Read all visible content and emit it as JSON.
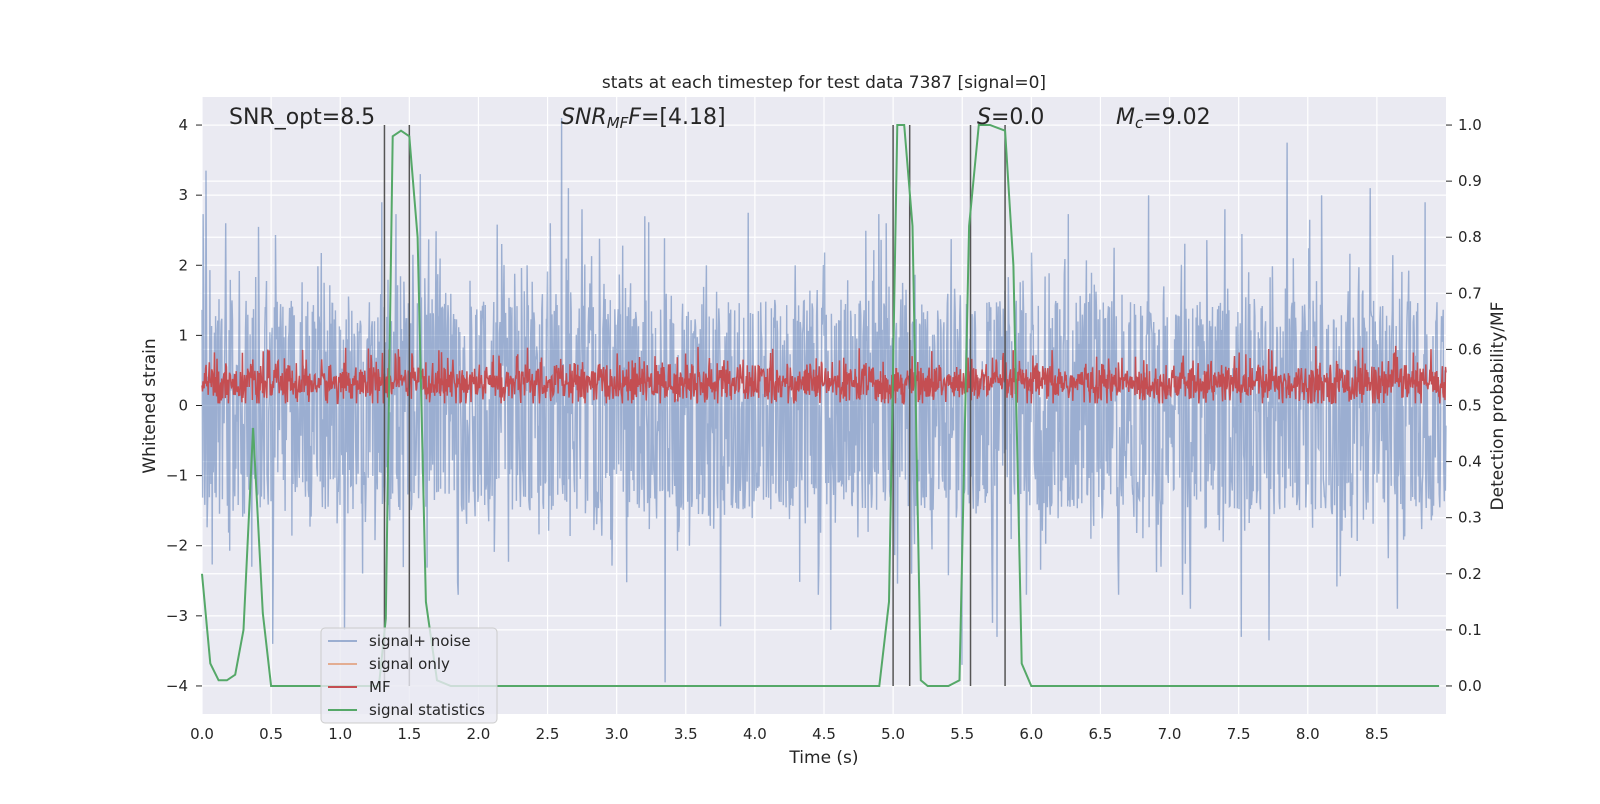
{
  "chart_data": {
    "type": "line",
    "title": "stats at each timestep for test data 7387 [signal=0]",
    "xlabel": "Time (s)",
    "ylabel": "Whitened strain",
    "y2label": "Detection probability/MF",
    "xlim": [
      0,
      9.0
    ],
    "ylim": [
      -4.4,
      4.4
    ],
    "y2lim": [
      -0.05,
      1.05
    ],
    "xticks": [
      0.0,
      0.5,
      1.0,
      1.5,
      2.0,
      2.5,
      3.0,
      3.5,
      4.0,
      4.5,
      5.0,
      5.5,
      6.0,
      6.5,
      7.0,
      7.5,
      8.0,
      8.5
    ],
    "xtick_labels": [
      "0.0",
      "0.5",
      "1.0",
      "1.5",
      "2.0",
      "2.5",
      "3.0",
      "3.5",
      "4.0",
      "4.5",
      "5.0",
      "5.5",
      "6.0",
      "6.5",
      "7.0",
      "7.5",
      "8.0",
      "8.5"
    ],
    "yticks": [
      4,
      3,
      2,
      1,
      0,
      -1,
      -2,
      -3,
      -4
    ],
    "ytick_labels": [
      "4",
      "3",
      "2",
      "1",
      "0",
      "−1",
      "−2",
      "−3",
      "−4"
    ],
    "y2ticks": [
      1.0,
      0.9,
      0.8,
      0.7,
      0.6,
      0.5,
      0.4,
      0.3,
      0.2,
      0.1,
      0.0
    ],
    "y2tick_labels": [
      "1.0",
      "0.9",
      "0.8",
      "0.7",
      "0.6",
      "0.5",
      "0.4",
      "0.3",
      "0.2",
      "0.1",
      "0.0"
    ],
    "annotations": {
      "snr_opt": "SNR_opt=8.5",
      "snr_mf_main": "SNR",
      "snr_mf_sub": "MF",
      "snr_mf_value": "=[4.18]",
      "s_main": "S",
      "s_value": "=0.0",
      "mc_main": "M",
      "mc_sub": "c",
      "mc_value": "=9.02"
    },
    "vertical_lines": [
      1.32,
      1.5,
      5.0,
      5.12,
      5.56,
      5.81
    ],
    "vline_range": [
      0.0,
      1.0
    ],
    "noise": {
      "name": "signal+ noise",
      "color": "#4c72b0",
      "typical_range": [
        -2.0,
        2.1
      ],
      "peaks": [
        {
          "x": 0.03,
          "y": 3.35
        },
        {
          "x": 0.17,
          "y": 2.6
        },
        {
          "x": 0.36,
          "y": -2.3
        },
        {
          "x": 0.51,
          "y": -3.4
        },
        {
          "x": 1.03,
          "y": -3.2
        },
        {
          "x": 1.3,
          "y": 2.9
        },
        {
          "x": 1.58,
          "y": 3.3
        },
        {
          "x": 2.52,
          "y": 2.6
        },
        {
          "x": 2.6,
          "y": 4.1
        },
        {
          "x": 2.65,
          "y": 3.1
        },
        {
          "x": 2.75,
          "y": 2.8
        },
        {
          "x": 3.35,
          "y": -3.95
        },
        {
          "x": 3.75,
          "y": -3.15
        },
        {
          "x": 3.95,
          "y": 2.75
        },
        {
          "x": 4.55,
          "y": -3.2
        },
        {
          "x": 4.95,
          "y": 2.6
        },
        {
          "x": 5.5,
          "y": -3.7
        },
        {
          "x": 5.72,
          "y": -3.1
        },
        {
          "x": 5.75,
          "y": -3.3
        },
        {
          "x": 6.85,
          "y": 3.0
        },
        {
          "x": 7.15,
          "y": -2.9
        },
        {
          "x": 7.4,
          "y": 2.8
        },
        {
          "x": 7.52,
          "y": -3.3
        },
        {
          "x": 7.72,
          "y": -3.35
        },
        {
          "x": 7.85,
          "y": 3.75
        },
        {
          "x": 8.1,
          "y": 3.0
        },
        {
          "x": 8.45,
          "y": 3.1
        },
        {
          "x": 8.65,
          "y": -2.9
        },
        {
          "x": 8.85,
          "y": 2.9
        }
      ]
    },
    "signal_only": {
      "name": "signal only",
      "color": "#dd8452",
      "values": []
    },
    "mf": {
      "name": "MF",
      "color": "#c44e52",
      "typical_range": [
        0.03,
        0.72
      ],
      "max": 0.85
    },
    "signal_statistics": {
      "name": "signal statistics",
      "color": "#55a868",
      "x": [
        0.0,
        0.06,
        0.12,
        0.18,
        0.24,
        0.3,
        0.37,
        0.44,
        0.5,
        0.6,
        1.2,
        1.28,
        1.33,
        1.38,
        1.44,
        1.5,
        1.56,
        1.62,
        1.7,
        1.8,
        4.9,
        4.97,
        5.03,
        5.08,
        5.14,
        5.2,
        5.25,
        5.32,
        5.4,
        5.48,
        5.55,
        5.62,
        5.7,
        5.81,
        5.87,
        5.93,
        6.0,
        6.1,
        8.95
      ],
      "y": [
        0.2,
        0.04,
        0.01,
        0.01,
        0.02,
        0.1,
        0.46,
        0.13,
        0.0,
        0.0,
        0.0,
        0.0,
        0.12,
        0.98,
        0.99,
        0.98,
        0.8,
        0.15,
        0.01,
        0.0,
        0.0,
        0.15,
        1.0,
        1.0,
        0.82,
        0.01,
        0.0,
        0.0,
        0.0,
        0.01,
        0.82,
        1.0,
        1.0,
        0.99,
        0.75,
        0.04,
        0.0,
        0.0,
        0.0
      ]
    },
    "legend": {
      "position": "lower-left",
      "entries": [
        {
          "label": "signal+ noise",
          "color": "#4c72b0"
        },
        {
          "label": "signal only",
          "color": "#dd8452"
        },
        {
          "label": "MF",
          "color": "#c44e52"
        },
        {
          "label": "signal statistics",
          "color": "#55a868"
        }
      ]
    },
    "colors": {
      "figure_background": "#ffffff",
      "axes_background": "#eaeaf2",
      "grid": "#ffffff",
      "vline": "#555555"
    }
  }
}
